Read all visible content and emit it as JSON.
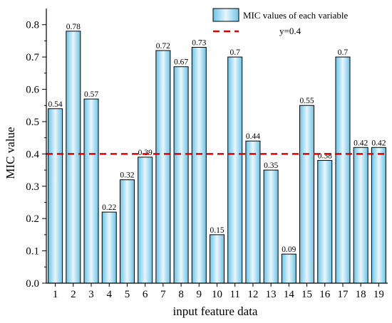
{
  "chart_data": {
    "type": "bar",
    "categories": [
      "1",
      "2",
      "3",
      "4",
      "5",
      "6",
      "7",
      "8",
      "9",
      "10",
      "11",
      "12",
      "13",
      "14",
      "15",
      "16",
      "17",
      "18",
      "19"
    ],
    "values": [
      0.54,
      0.78,
      0.57,
      0.22,
      0.32,
      0.39,
      0.72,
      0.67,
      0.73,
      0.15,
      0.7,
      0.44,
      0.35,
      0.09,
      0.55,
      0.38,
      0.7,
      0.42,
      0.42
    ],
    "data_labels": [
      "0.54",
      "0.78",
      "0.57",
      "0.22",
      "0.32",
      "0.39",
      "0.72",
      "0.67",
      "0.73",
      "0.15",
      "0.7",
      "0.44",
      "0.35",
      "0.09",
      "0.55",
      "0.38",
      "0.7",
      "0.42",
      "0.42"
    ],
    "title": "",
    "xlabel": "input feature data",
    "ylabel": "MIC value",
    "ylim": [
      0,
      0.85
    ],
    "yticks": [
      0.0,
      0.1,
      0.2,
      0.3,
      0.4,
      0.5,
      0.6,
      0.7,
      0.8
    ],
    "ytick_labels": [
      "0.0",
      "0.1",
      "0.2",
      "0.3",
      "0.4",
      "0.5",
      "0.6",
      "0.7",
      "0.8"
    ],
    "reference_line": {
      "y": 0.4,
      "label": "y=0.4",
      "color": "#e00000",
      "style": "dashed"
    },
    "legend": {
      "position": "top-right",
      "entries": [
        {
          "label": "MIC values of each variable",
          "kind": "bar"
        },
        {
          "label": "y=0.4",
          "kind": "line"
        }
      ]
    },
    "bar_colors": {
      "light": "#e8f6fd",
      "dark": "#6cc3e6",
      "edge": "#000000"
    },
    "grid": false
  }
}
